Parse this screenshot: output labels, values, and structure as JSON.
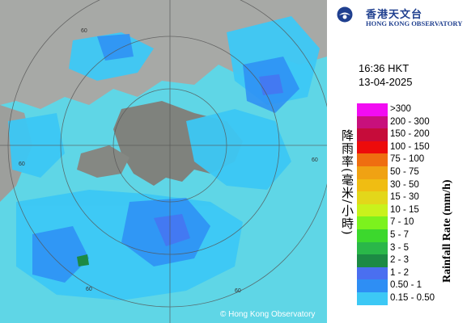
{
  "map": {
    "copyright": "© Hong Kong Observatory",
    "range_labels": [
      "60",
      "60",
      "60",
      "60",
      "60"
    ]
  },
  "header": {
    "org_cn": "香港天文台",
    "org_en": "HONG KONG OBSERVATORY",
    "time": "16:36 HKT",
    "date": "13-04-2025"
  },
  "legend": {
    "title_cn": "降雨率(毫米/小時)",
    "title_en": "Rainfall Rate (mm/h)",
    "items": [
      {
        "label": ">300",
        "color": "#f20cf2"
      },
      {
        "label": "200 - 300",
        "color": "#c8107c"
      },
      {
        "label": "150 - 200",
        "color": "#c60c3a"
      },
      {
        "label": "100 - 150",
        "color": "#ed0b0b"
      },
      {
        "label": "75 - 100",
        "color": "#ef6e10"
      },
      {
        "label": "50 - 75",
        "color": "#f0a213"
      },
      {
        "label": "30 - 50",
        "color": "#f0bd12"
      },
      {
        "label": "15 - 30",
        "color": "#e3d71a"
      },
      {
        "label": "10 - 15",
        "color": "#c9f21c"
      },
      {
        "label": "7 - 10",
        "color": "#7cf21d"
      },
      {
        "label": "5 - 7",
        "color": "#3cd82d"
      },
      {
        "label": "3 - 5",
        "color": "#2ab749"
      },
      {
        "label": "2 - 3",
        "color": "#1c8a44"
      },
      {
        "label": "1 - 2",
        "color": "#4a6ff0"
      },
      {
        "label": "0.50 - 1",
        "color": "#2e8ef4"
      },
      {
        "label": "0.15 - 0.50",
        "color": "#3cc8f5"
      }
    ]
  }
}
